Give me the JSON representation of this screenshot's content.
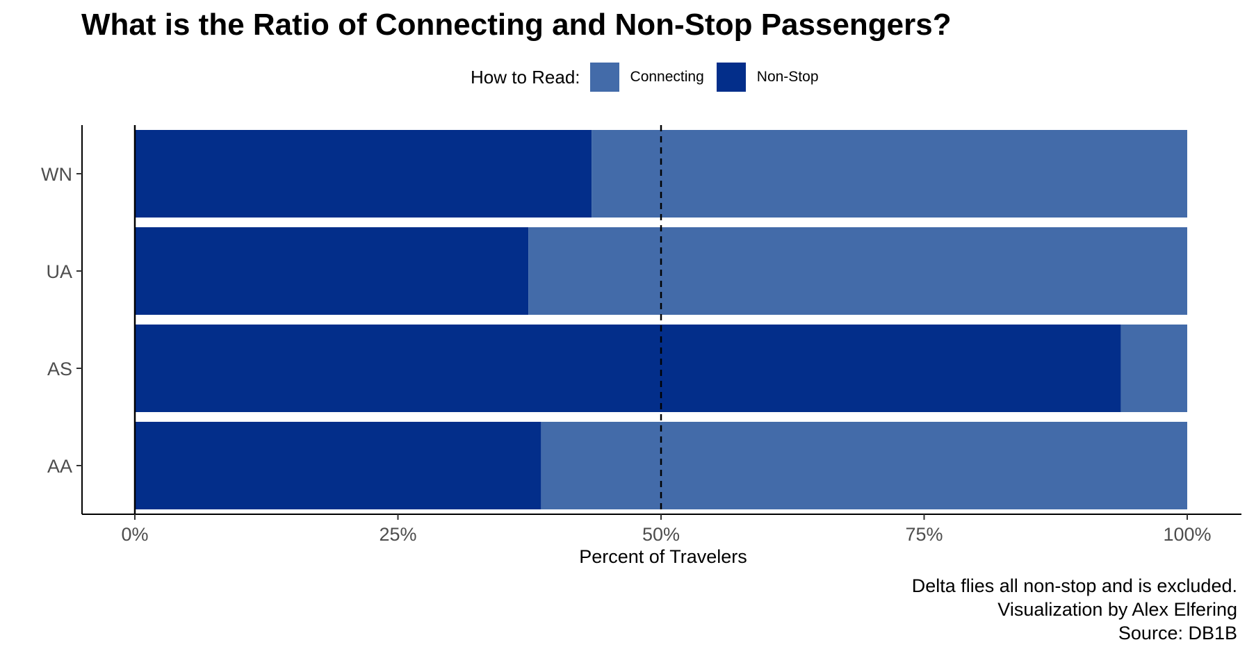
{
  "chart_data": {
    "type": "bar",
    "orientation": "horizontal",
    "stacked": true,
    "title": "What is the Ratio of Connecting and Non-Stop Passengers?",
    "xlabel": "Percent of Travelers",
    "ylabel": "",
    "categories": [
      "AA",
      "AS",
      "UA",
      "WN"
    ],
    "series": [
      {
        "name": "Non-Stop",
        "color": "#032e8a",
        "values": [
          0.386,
          0.937,
          0.374,
          0.434
        ]
      },
      {
        "name": "Connecting",
        "color": "#436ba9",
        "values": [
          0.614,
          0.063,
          0.626,
          0.566
        ]
      }
    ],
    "xlim": [
      0,
      1
    ],
    "xticks": [
      {
        "value": 0,
        "label": "0%"
      },
      {
        "value": 0.25,
        "label": "25%"
      },
      {
        "value": 0.5,
        "label": "50%"
      },
      {
        "value": 0.75,
        "label": "75%"
      },
      {
        "value": 1,
        "label": "100%"
      }
    ],
    "reference_line": {
      "value": 0.5,
      "style": "dashed"
    },
    "grid": false,
    "legend": {
      "title": "How to Read:",
      "placement": "top",
      "items": [
        {
          "label": "Connecting",
          "color": "#436ba9"
        },
        {
          "label": "Non-Stop",
          "color": "#032e8a"
        }
      ]
    },
    "caption": [
      "Delta flies all non-stop and is excluded.",
      "Visualization by Alex Elfering",
      "Source: DB1B"
    ]
  }
}
